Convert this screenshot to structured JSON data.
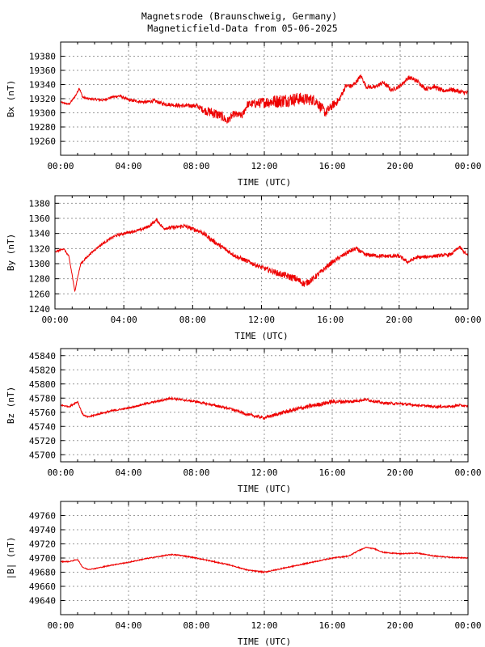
{
  "header": {
    "line1": "Magnetsrode (Braunschweig, Germany)",
    "line2": "Magneticfield-Data from 05-06-2025"
  },
  "colors": {
    "series": "#ee0000",
    "grid": "#999999",
    "axis": "#000000"
  },
  "chart_data": [
    {
      "type": "line",
      "ylabel": "Bx (nT)",
      "xlabel": "TIME (UTC)",
      "xlim": [
        0,
        24
      ],
      "ylim": [
        19240,
        19400
      ],
      "yticks": [
        19260,
        19280,
        19300,
        19320,
        19340,
        19360,
        19380
      ],
      "xticks": [
        "00:00",
        "04:00",
        "08:00",
        "12:00",
        "16:00",
        "20:00",
        "00:00"
      ],
      "grid": true,
      "noise": [
        [
          0,
          1
        ],
        [
          8,
          3
        ],
        [
          9,
          8
        ],
        [
          10,
          5
        ],
        [
          11,
          5
        ],
        [
          12,
          8
        ],
        [
          13,
          10
        ],
        [
          15,
          8
        ],
        [
          16,
          6
        ],
        [
          17,
          3
        ],
        [
          24,
          3
        ]
      ],
      "series": [
        {
          "x": [
            0,
            0.5,
            0.9,
            1.1,
            1.3,
            1.6,
            2.5,
            3,
            3.5,
            4,
            5,
            5.5,
            6,
            7,
            8,
            8.5,
            9,
            9.5,
            9.8,
            10.2,
            10.7,
            11,
            11.5,
            12,
            13,
            14,
            15,
            15.6,
            16,
            16.4,
            16.8,
            17.2,
            17.7,
            18,
            18.5,
            19,
            19.5,
            20,
            20.5,
            21,
            21.5,
            22,
            22.5,
            23,
            23.5,
            24
          ],
          "y": [
            19315,
            19312,
            19325,
            19335,
            19322,
            19320,
            19318,
            19322,
            19324,
            19318,
            19315,
            19317,
            19313,
            19310,
            19310,
            19303,
            19300,
            19295,
            19288,
            19298,
            19296,
            19312,
            19313,
            19315,
            19317,
            19320,
            19318,
            19300,
            19310,
            19318,
            19338,
            19338,
            19352,
            19337,
            19336,
            19343,
            19332,
            19338,
            19350,
            19345,
            19334,
            19337,
            19331,
            19333,
            19330,
            19328
          ]
        }
      ]
    },
    {
      "type": "line",
      "ylabel": "By (nT)",
      "xlabel": "TIME (UTC)",
      "xlim": [
        0,
        24
      ],
      "ylim": [
        1240,
        1390
      ],
      "yticks": [
        1240,
        1260,
        1280,
        1300,
        1320,
        1340,
        1360,
        1380
      ],
      "xticks": [
        "00:00",
        "04:00",
        "08:00",
        "12:00",
        "16:00",
        "20:00",
        "00:00"
      ],
      "grid": true,
      "noise": [
        [
          0,
          1
        ],
        [
          5,
          2
        ],
        [
          9,
          3
        ],
        [
          12,
          3
        ],
        [
          14,
          5
        ],
        [
          16,
          3
        ],
        [
          24,
          2
        ]
      ],
      "series": [
        {
          "x": [
            0,
            0.5,
            0.8,
            1.0,
            1.15,
            1.3,
            1.5,
            2,
            2.5,
            3,
            3.5,
            4,
            5,
            5.5,
            5.9,
            6.3,
            7,
            7.5,
            8.5,
            9.5,
            10.5,
            11.5,
            12,
            13,
            14,
            14.5,
            15,
            15.5,
            16,
            17,
            17.5,
            18,
            19,
            20,
            20.5,
            21,
            22,
            23,
            23.5,
            24
          ],
          "y": [
            1315,
            1320,
            1310,
            1285,
            1263,
            1280,
            1300,
            1312,
            1322,
            1330,
            1337,
            1340,
            1345,
            1350,
            1358,
            1347,
            1348,
            1350,
            1342,
            1325,
            1310,
            1300,
            1295,
            1287,
            1280,
            1273,
            1280,
            1290,
            1300,
            1315,
            1320,
            1312,
            1310,
            1310,
            1302,
            1308,
            1310,
            1312,
            1322,
            1310
          ]
        }
      ]
    },
    {
      "type": "line",
      "ylabel": "Bz (nT)",
      "xlabel": "TIME (UTC)",
      "xlim": [
        0,
        24
      ],
      "ylim": [
        45690,
        45850
      ],
      "yticks": [
        45700,
        45720,
        45740,
        45760,
        45780,
        45800,
        45820,
        45840
      ],
      "xticks": [
        "00:00",
        "04:00",
        "08:00",
        "12:00",
        "16:00",
        "20:00",
        "00:00"
      ],
      "grid": true,
      "noise": [
        [
          0,
          1
        ],
        [
          8,
          1.5
        ],
        [
          12,
          2
        ],
        [
          14,
          3
        ],
        [
          16,
          3
        ],
        [
          18,
          2
        ],
        [
          24,
          1.5
        ]
      ],
      "series": [
        {
          "x": [
            0,
            0.5,
            1.0,
            1.3,
            1.6,
            2,
            3,
            4,
            5,
            6,
            6.5,
            7,
            8,
            9,
            10,
            11,
            12,
            13,
            14,
            15,
            16,
            17,
            18,
            19,
            20,
            21,
            22,
            23,
            23.5,
            24
          ],
          "y": [
            45770,
            45768,
            45775,
            45757,
            45753,
            45756,
            45762,
            45766,
            45772,
            45777,
            45780,
            45778,
            45775,
            45770,
            45765,
            45757,
            45752,
            45759,
            45765,
            45770,
            45775,
            45775,
            45778,
            45773,
            45772,
            45770,
            45768,
            45768,
            45770,
            45768
          ]
        }
      ]
    },
    {
      "type": "line",
      "ylabel": "|B| (nT)",
      "xlabel": "TIME (UTC)",
      "xlim": [
        0,
        24
      ],
      "ylim": [
        49620,
        49780
      ],
      "yticks": [
        49640,
        49660,
        49680,
        49700,
        49720,
        49740,
        49760
      ],
      "xticks": [
        "00:00",
        "04:00",
        "08:00",
        "12:00",
        "16:00",
        "20:00",
        "00:00"
      ],
      "grid": true,
      "noise": [
        [
          0,
          0.6
        ],
        [
          12,
          0.8
        ],
        [
          24,
          0.6
        ]
      ],
      "series": [
        {
          "x": [
            0,
            0.5,
            1.0,
            1.3,
            1.6,
            2,
            3,
            4,
            5,
            6,
            6.5,
            7,
            8,
            9,
            10,
            11,
            12,
            13,
            14,
            15,
            16,
            17,
            17.5,
            18,
            18.5,
            19,
            20,
            21,
            22,
            23,
            24
          ],
          "y": [
            49695,
            49695,
            49698,
            49687,
            49684,
            49685,
            49690,
            49694,
            49699,
            49703,
            49705,
            49704,
            49700,
            49695,
            49690,
            49683,
            49680,
            49685,
            49690,
            49695,
            49700,
            49703,
            49710,
            49715,
            49713,
            49708,
            49706,
            49707,
            49703,
            49701,
            49700
          ]
        }
      ]
    }
  ]
}
